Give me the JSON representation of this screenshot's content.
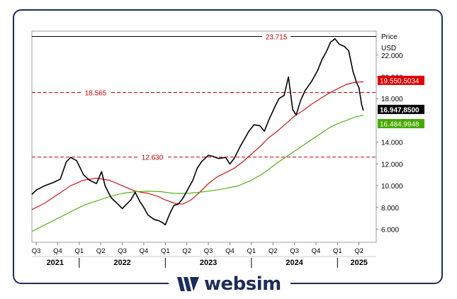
{
  "chart_data": {
    "type": "line",
    "price_axis_title": "Price",
    "currency": "USD",
    "y_range": [
      4.8,
      24.2
    ],
    "x_range": [
      2021.45,
      2025.45
    ],
    "y_ticks": [
      {
        "value": 22.0,
        "label": "22.000"
      },
      {
        "value": 20.0,
        "label": "20.000"
      },
      {
        "value": 18.0,
        "label": "18.000"
      },
      {
        "value": 14.0,
        "label": "14.000"
      },
      {
        "value": 12.0,
        "label": "12.000"
      },
      {
        "value": 10.0,
        "label": "10.000"
      },
      {
        "value": 8.0,
        "label": "8.000"
      },
      {
        "value": 6.0,
        "label": "6.000"
      }
    ],
    "quarter_ticks": [
      {
        "t": 2021.5,
        "label": "Q3"
      },
      {
        "t": 2021.75,
        "label": "Q4"
      },
      {
        "t": 2022.0,
        "label": "Q1"
      },
      {
        "t": 2022.25,
        "label": "Q2"
      },
      {
        "t": 2022.5,
        "label": "Q3"
      },
      {
        "t": 2022.75,
        "label": "Q4"
      },
      {
        "t": 2023.0,
        "label": "Q1"
      },
      {
        "t": 2023.25,
        "label": "Q2"
      },
      {
        "t": 2023.5,
        "label": "Q3"
      },
      {
        "t": 2023.75,
        "label": "Q4"
      },
      {
        "t": 2024.0,
        "label": "Q1"
      },
      {
        "t": 2024.25,
        "label": "Q2"
      },
      {
        "t": 2024.5,
        "label": "Q3"
      },
      {
        "t": 2024.75,
        "label": "Q4"
      },
      {
        "t": 2025.0,
        "label": "Q1"
      },
      {
        "t": 2025.25,
        "label": "Q2"
      }
    ],
    "years": [
      {
        "t": 2021.72,
        "label": "2021"
      },
      {
        "t": 2022.5,
        "label": "2022"
      },
      {
        "t": 2023.5,
        "label": "2023"
      },
      {
        "t": 2024.5,
        "label": "2024"
      },
      {
        "t": 2025.25,
        "label": "2025"
      }
    ],
    "year_separators": [
      2022.0,
      2023.0,
      2024.0,
      2025.0
    ],
    "levels": [
      {
        "value": 23.715,
        "label": "23.715",
        "style": "solid",
        "color": "#000000"
      },
      {
        "value": 18.565,
        "label": "18.565",
        "style": "dashed",
        "color": "#cc0000"
      },
      {
        "value": 12.63,
        "label": "12.630",
        "style": "dashed",
        "color": "#cc0000"
      }
    ],
    "price_series": {
      "color": "#000000",
      "points": [
        [
          2021.45,
          9.2
        ],
        [
          2021.5,
          9.6
        ],
        [
          2021.6,
          10.0
        ],
        [
          2021.7,
          10.3
        ],
        [
          2021.78,
          10.6
        ],
        [
          2021.85,
          12.2
        ],
        [
          2021.9,
          12.6
        ],
        [
          2021.97,
          12.3
        ],
        [
          2022.05,
          11.0
        ],
        [
          2022.12,
          10.5
        ],
        [
          2022.2,
          10.2
        ],
        [
          2022.26,
          11.3
        ],
        [
          2022.3,
          10.0
        ],
        [
          2022.37,
          8.9
        ],
        [
          2022.45,
          8.3
        ],
        [
          2022.5,
          7.9
        ],
        [
          2022.55,
          8.3
        ],
        [
          2022.6,
          8.7
        ],
        [
          2022.65,
          9.4
        ],
        [
          2022.7,
          8.6
        ],
        [
          2022.75,
          8.0
        ],
        [
          2022.8,
          7.3
        ],
        [
          2022.87,
          6.9
        ],
        [
          2022.92,
          6.8
        ],
        [
          2022.97,
          6.6
        ],
        [
          2023.0,
          6.4
        ],
        [
          2023.05,
          7.4
        ],
        [
          2023.1,
          8.2
        ],
        [
          2023.15,
          8.3
        ],
        [
          2023.2,
          8.8
        ],
        [
          2023.25,
          9.5
        ],
        [
          2023.32,
          10.5
        ],
        [
          2023.37,
          11.6
        ],
        [
          2023.42,
          12.2
        ],
        [
          2023.5,
          12.8
        ],
        [
          2023.55,
          12.7
        ],
        [
          2023.62,
          12.5
        ],
        [
          2023.7,
          12.6
        ],
        [
          2023.75,
          12.0
        ],
        [
          2023.8,
          12.5
        ],
        [
          2023.87,
          13.6
        ],
        [
          2023.92,
          14.3
        ],
        [
          2023.97,
          15.0
        ],
        [
          2024.03,
          15.6
        ],
        [
          2024.1,
          15.5
        ],
        [
          2024.15,
          15.0
        ],
        [
          2024.2,
          16.0
        ],
        [
          2024.27,
          17.2
        ],
        [
          2024.32,
          18.0
        ],
        [
          2024.38,
          18.3
        ],
        [
          2024.43,
          20.0
        ],
        [
          2024.48,
          17.0
        ],
        [
          2024.52,
          16.5
        ],
        [
          2024.57,
          17.8
        ],
        [
          2024.62,
          18.7
        ],
        [
          2024.7,
          19.6
        ],
        [
          2024.77,
          20.6
        ],
        [
          2024.82,
          21.6
        ],
        [
          2024.87,
          22.3
        ],
        [
          2024.92,
          23.2
        ],
        [
          2024.97,
          23.5
        ],
        [
          2025.02,
          23.0
        ],
        [
          2025.08,
          22.8
        ],
        [
          2025.13,
          22.4
        ],
        [
          2025.18,
          20.5
        ],
        [
          2025.22,
          19.5
        ],
        [
          2025.25,
          19.0
        ],
        [
          2025.28,
          17.5
        ],
        [
          2025.3,
          16.9
        ]
      ]
    },
    "ma_red": {
      "color": "#cc0000",
      "points": [
        [
          2021.45,
          7.8
        ],
        [
          2021.6,
          8.4
        ],
        [
          2021.75,
          9.2
        ],
        [
          2021.9,
          10.0
        ],
        [
          2022.05,
          10.5
        ],
        [
          2022.2,
          10.7
        ],
        [
          2022.35,
          10.5
        ],
        [
          2022.5,
          10.0
        ],
        [
          2022.65,
          9.5
        ],
        [
          2022.8,
          9.3
        ],
        [
          2022.92,
          9.0
        ],
        [
          2023.0,
          8.7
        ],
        [
          2023.1,
          8.4
        ],
        [
          2023.2,
          8.3
        ],
        [
          2023.3,
          8.7
        ],
        [
          2023.4,
          9.4
        ],
        [
          2023.5,
          10.2
        ],
        [
          2023.6,
          10.8
        ],
        [
          2023.7,
          11.2
        ],
        [
          2023.8,
          11.6
        ],
        [
          2023.9,
          12.2
        ],
        [
          2024.0,
          12.9
        ],
        [
          2024.1,
          13.6
        ],
        [
          2024.2,
          14.4
        ],
        [
          2024.3,
          15.0
        ],
        [
          2024.4,
          15.7
        ],
        [
          2024.5,
          16.4
        ],
        [
          2024.6,
          16.9
        ],
        [
          2024.7,
          17.5
        ],
        [
          2024.8,
          18.0
        ],
        [
          2024.9,
          18.5
        ],
        [
          2025.0,
          18.9
        ],
        [
          2025.1,
          19.3
        ],
        [
          2025.2,
          19.5
        ],
        [
          2025.3,
          19.55
        ]
      ]
    },
    "ma_green": {
      "color": "#44aa00",
      "points": [
        [
          2021.45,
          5.8
        ],
        [
          2021.6,
          6.4
        ],
        [
          2021.75,
          7.0
        ],
        [
          2021.9,
          7.6
        ],
        [
          2022.05,
          8.2
        ],
        [
          2022.2,
          8.6
        ],
        [
          2022.35,
          9.0
        ],
        [
          2022.5,
          9.3
        ],
        [
          2022.65,
          9.45
        ],
        [
          2022.8,
          9.5
        ],
        [
          2022.95,
          9.45
        ],
        [
          2023.1,
          9.3
        ],
        [
          2023.25,
          9.3
        ],
        [
          2023.4,
          9.4
        ],
        [
          2023.55,
          9.55
        ],
        [
          2023.7,
          9.75
        ],
        [
          2023.85,
          10.0
        ],
        [
          2024.0,
          10.5
        ],
        [
          2024.15,
          11.2
        ],
        [
          2024.3,
          12.1
        ],
        [
          2024.45,
          12.9
        ],
        [
          2024.6,
          13.7
        ],
        [
          2024.75,
          14.5
        ],
        [
          2024.9,
          15.3
        ],
        [
          2025.0,
          15.7
        ],
        [
          2025.1,
          16.0
        ],
        [
          2025.2,
          16.3
        ],
        [
          2025.3,
          16.48
        ]
      ]
    },
    "value_tags": [
      {
        "value": 19.55,
        "label": "19.550,5034",
        "bg": "#dd0000",
        "fg": "#ffffff"
      },
      {
        "value": 16.947,
        "label": "16.947,8500",
        "bg": "#000000",
        "fg": "#ffffff"
      },
      {
        "value": 16.485,
        "label": "16.484,9948",
        "bg": "#44aa00",
        "fg": "#ffffff"
      }
    ]
  },
  "brand": {
    "name": "websim",
    "color": "#1c2d5a"
  }
}
